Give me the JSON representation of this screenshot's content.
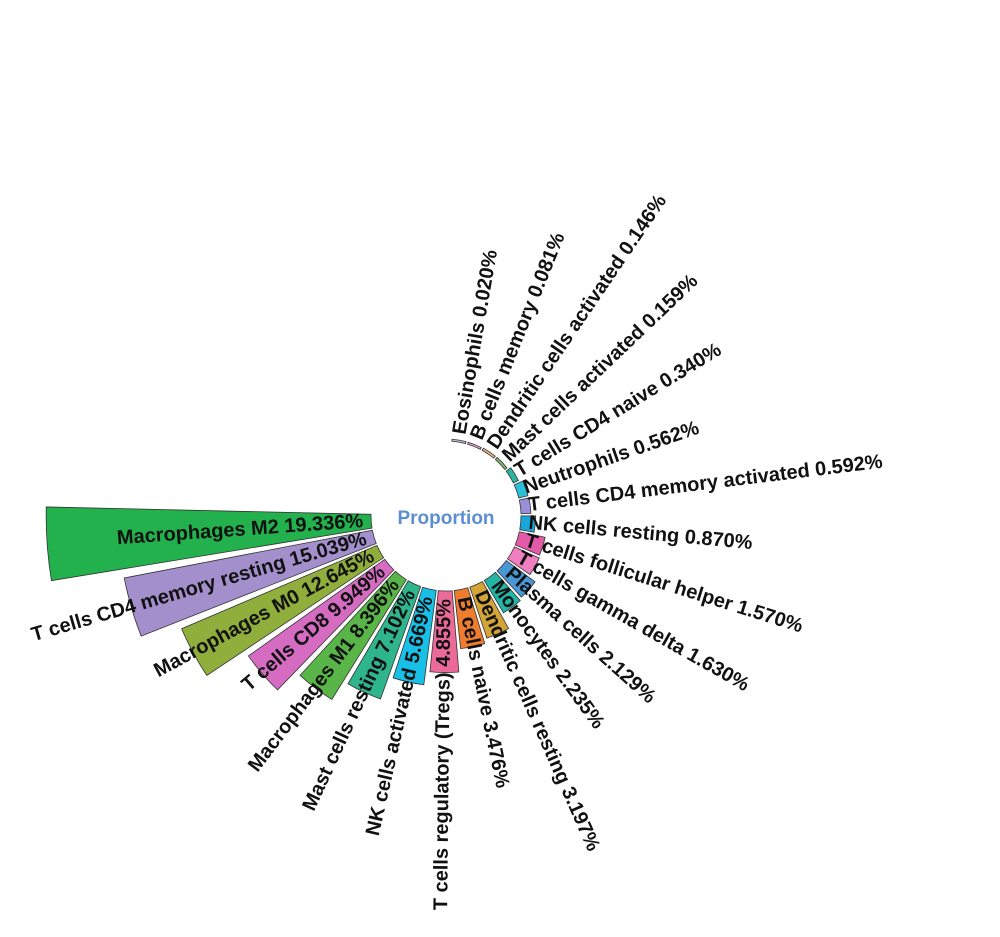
{
  "chart_data": {
    "type": "circular-bar",
    "center_label": "Proportion",
    "values_unit": "%",
    "categories": [
      {
        "name": "Eosinophils",
        "value_label": "0.020%",
        "value": 0.02,
        "color": "#c9b7d8"
      },
      {
        "name": "B cells memory",
        "value_label": "0.081%",
        "value": 0.081,
        "color": "#e8a1c8"
      },
      {
        "name": "Dendritic cells activated",
        "value_label": "0.146%",
        "value": 0.146,
        "color": "#f1b37c"
      },
      {
        "name": "Mast cells activated",
        "value_label": "0.159%",
        "value": 0.159,
        "color": "#7fbd6a"
      },
      {
        "name": "T cells CD4 naive",
        "value_label": "0.340%",
        "value": 0.34,
        "color": "#2bb5a0"
      },
      {
        "name": "Neutrophils",
        "value_label": "0.562%",
        "value": 0.562,
        "color": "#2bc0d8"
      },
      {
        "name": "T cells CD4 memory activated",
        "value_label": "0.592%",
        "value": 0.592,
        "color": "#9a8fd6"
      },
      {
        "name": "NK cells resting",
        "value_label": "0.870%",
        "value": 0.87,
        "color": "#1aa6d9"
      },
      {
        "name": "T cells follicular helper",
        "value_label": "1.570%",
        "value": 1.57,
        "color": "#e25aa8"
      },
      {
        "name": "T cells gamma delta",
        "value_label": "1.630%",
        "value": 1.63,
        "color": "#ef7fbf"
      },
      {
        "name": "Plasma cells",
        "value_label": "2.129%",
        "value": 2.129,
        "color": "#4a97d6"
      },
      {
        "name": "Monocytes",
        "value_label": "2.235%",
        "value": 2.235,
        "color": "#22b5a6"
      },
      {
        "name": "Dendritic cells resting",
        "value_label": "3.197%",
        "value": 3.197,
        "color": "#d3a436"
      },
      {
        "name": "B cells naive",
        "value_label": "3.476%",
        "value": 3.476,
        "color": "#ef7d2e"
      },
      {
        "name": "T cells regulatory (Tregs)",
        "value_label": "4.855%",
        "value": 4.855,
        "color": "#ec6a98"
      },
      {
        "name": "NK cells activated",
        "value_label": "5.669%",
        "value": 5.669,
        "color": "#18c0e8"
      },
      {
        "name": "Mast cells resting",
        "value_label": "7.102%",
        "value": 7.102,
        "color": "#2fb58c"
      },
      {
        "name": "Macrophages M1",
        "value_label": "8.396%",
        "value": 8.396,
        "color": "#59b548"
      },
      {
        "name": "T cells CD8",
        "value_label": "9.949%",
        "value": 9.949,
        "color": "#d56cc2"
      },
      {
        "name": "Macrophages M0",
        "value_label": "12.645%",
        "value": 12.645,
        "color": "#8fae3b"
      },
      {
        "name": "T cells CD4 memory resting",
        "value_label": "15.039%",
        "value": 15.039,
        "color": "#a38fcc"
      },
      {
        "name": "Macrophages M2",
        "value_label": "19.336%",
        "value": 19.336,
        "color": "#23b14d"
      }
    ]
  }
}
